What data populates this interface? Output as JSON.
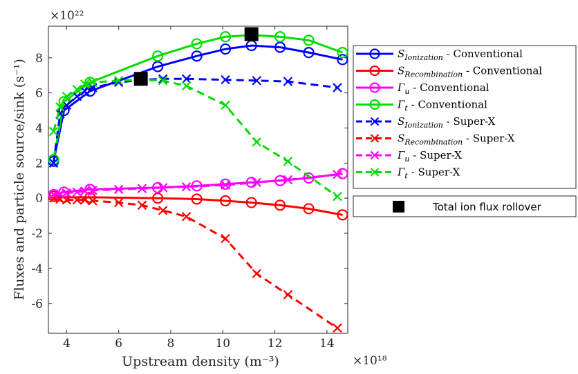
{
  "chart_data": {
    "type": "line",
    "xlabel": "Upstream density (m⁻³)",
    "ylabel": "Fluxes and particle source/sink (s⁻¹)",
    "x_exponent": "×10¹⁸",
    "y_exponent": "×10²²",
    "xlim": [
      3.3,
      14.8
    ],
    "ylim": [
      -7.7,
      9.8
    ],
    "xticks": [
      4,
      6,
      8,
      10,
      12,
      14
    ],
    "yticks": [
      -6,
      -4,
      -2,
      0,
      2,
      4,
      6,
      8
    ],
    "x_conventional": [
      3.5,
      3.9,
      4.9,
      7.5,
      9.0,
      10.1,
      11.1,
      12.2,
      13.3,
      14.6
    ],
    "x_superx": [
      3.5,
      3.75,
      4.0,
      4.4,
      4.7,
      5.0,
      6.0,
      6.9,
      7.7,
      8.6,
      10.1,
      11.3,
      12.5,
      14.4
    ],
    "series": [
      {
        "name": "S_Ionization - Conventional",
        "main": "S",
        "sub": "Ionization",
        "suffix": " - Conventional",
        "color": "#0000ff",
        "style": "solid",
        "marker": "circle",
        "group": "conventional",
        "values": [
          2.1,
          5.0,
          6.1,
          7.5,
          8.1,
          8.5,
          8.7,
          8.6,
          8.3,
          7.9
        ]
      },
      {
        "name": "S_Recombination - Conventional",
        "main": "S",
        "sub": "Recombination",
        "suffix": " - Conventional",
        "color": "#ff0000",
        "style": "solid",
        "marker": "circle",
        "group": "conventional",
        "values": [
          0.1,
          0.05,
          0.05,
          0.0,
          -0.05,
          -0.15,
          -0.25,
          -0.4,
          -0.6,
          -0.95
        ]
      },
      {
        "name": "Γ_u - Conventional",
        "main": "Γ",
        "sub": "u",
        "suffix": " - Conventional",
        "color": "#ff00ff",
        "style": "solid",
        "marker": "circle",
        "group": "conventional",
        "values": [
          0.2,
          0.35,
          0.5,
          0.6,
          0.7,
          0.8,
          0.9,
          1.0,
          1.15,
          1.4
        ]
      },
      {
        "name": "Γ_t - Conventional",
        "main": "Γ",
        "sub": "t",
        "suffix": " - Conventional",
        "color": "#00dd00",
        "style": "solid",
        "marker": "circle",
        "group": "conventional",
        "values": [
          2.2,
          5.5,
          6.6,
          8.1,
          8.8,
          9.2,
          9.3,
          9.2,
          9.0,
          8.3
        ]
      },
      {
        "name": "S_Ionization - Super-X",
        "main": "S",
        "sub": "Ionization",
        "suffix": " - Super-X",
        "color": "#0000ff",
        "style": "dashed",
        "marker": "x",
        "group": "superx",
        "values": [
          2.0,
          4.8,
          5.3,
          5.8,
          6.1,
          6.3,
          6.6,
          6.75,
          6.8,
          6.8,
          6.75,
          6.7,
          6.65,
          6.3
        ]
      },
      {
        "name": "S_Recombination - Super-X",
        "main": "S",
        "sub": "Recombination",
        "suffix": " - Super-X",
        "color": "#ff0000",
        "style": "dashed",
        "marker": "x",
        "group": "superx",
        "values": [
          0.0,
          -0.05,
          -0.1,
          -0.1,
          -0.1,
          -0.15,
          -0.25,
          -0.4,
          -0.7,
          -1.05,
          -2.3,
          -4.3,
          -5.5,
          -7.4
        ]
      },
      {
        "name": "Γ_u - Super-X",
        "main": "Γ",
        "sub": "u",
        "suffix": " - Super-X",
        "color": "#ff00ff",
        "style": "dashed",
        "marker": "x",
        "group": "superx",
        "values": [
          0.2,
          0.25,
          0.3,
          0.35,
          0.4,
          0.45,
          0.5,
          0.55,
          0.6,
          0.65,
          0.75,
          0.9,
          1.05,
          1.35
        ]
      },
      {
        "name": "Γ_t - Super-X",
        "main": "Γ",
        "sub": "t",
        "suffix": " - Super-X",
        "color": "#00dd00",
        "style": "dashed",
        "marker": "x",
        "group": "superx",
        "values": [
          3.8,
          5.2,
          5.8,
          6.2,
          6.5,
          6.6,
          6.7,
          6.75,
          6.7,
          6.4,
          5.3,
          3.2,
          2.1,
          0.1
        ]
      }
    ],
    "rollover": {
      "label": "Total ion flux rollover",
      "color": "#000000",
      "points": [
        {
          "x": 6.85,
          "y": 6.8
        },
        {
          "x": 11.1,
          "y": 9.35
        }
      ]
    },
    "grid": false,
    "legend_position": "outside-right"
  }
}
